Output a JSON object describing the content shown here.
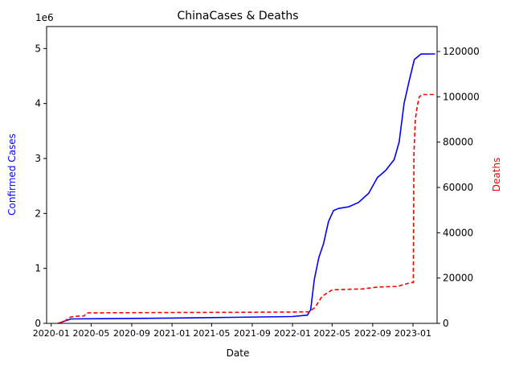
{
  "chart_data": {
    "type": "line",
    "title": "ChinaCases & Deaths",
    "xlabel": "Date",
    "ylabel_left": "Confirmed Cases",
    "ylabel_right": "Deaths",
    "left_axis_multiplier_label": "1e6",
    "colors": {
      "cases": "#0000ff",
      "deaths": "#ff0000",
      "axes": "#000000"
    },
    "grid": false,
    "x_ticks": [
      "2020-01",
      "2020-05",
      "2020-09",
      "2021-01",
      "2021-05",
      "2021-09",
      "2022-01",
      "2022-05",
      "2022-09",
      "2023-01"
    ],
    "xlim": [
      "2019-12-18",
      "2023-03-15"
    ],
    "y_left_ticks": [
      0,
      1,
      2,
      3,
      4,
      5
    ],
    "y_left_ticks_display": [
      "0",
      "1",
      "2",
      "3",
      "4",
      "5"
    ],
    "y_left_scale": 1000000,
    "ylim_left": [
      0,
      5400000
    ],
    "y_right_ticks": [
      0,
      20000,
      40000,
      60000,
      80000,
      100000,
      120000
    ],
    "y_right_ticks_display": [
      "0",
      "20000",
      "40000",
      "60000",
      "80000",
      "100000",
      "120000"
    ],
    "ylim_right": [
      0,
      131000
    ],
    "series": [
      {
        "axis": "left",
        "style": "solid",
        "points": [
          [
            "2020-01-22",
            548
          ],
          [
            "2020-02-10",
            40000
          ],
          [
            "2020-03-01",
            80000
          ],
          [
            "2020-06-01",
            85000
          ],
          [
            "2021-01-01",
            97000
          ],
          [
            "2021-07-01",
            110000
          ],
          [
            "2022-01-01",
            125000
          ],
          [
            "2022-02-15",
            150000
          ],
          [
            "2022-02-25",
            250000
          ],
          [
            "2022-03-08",
            800000
          ],
          [
            "2022-03-22",
            1200000
          ],
          [
            "2022-04-05",
            1450000
          ],
          [
            "2022-04-20",
            1850000
          ],
          [
            "2022-05-05",
            2050000
          ],
          [
            "2022-05-20",
            2090000
          ],
          [
            "2022-06-20",
            2120000
          ],
          [
            "2022-07-20",
            2200000
          ],
          [
            "2022-08-20",
            2370000
          ],
          [
            "2022-09-15",
            2650000
          ],
          [
            "2022-10-10",
            2780000
          ],
          [
            "2022-11-05",
            2980000
          ],
          [
            "2022-11-20",
            3300000
          ],
          [
            "2022-12-05",
            4000000
          ],
          [
            "2022-12-20",
            4400000
          ],
          [
            "2023-01-05",
            4800000
          ],
          [
            "2023-01-25",
            4900000
          ],
          [
            "2023-03-09",
            4903000
          ]
        ]
      },
      {
        "axis": "right",
        "style": "dashed",
        "points": [
          [
            "2020-01-22",
            17
          ],
          [
            "2020-02-10",
            900
          ],
          [
            "2020-02-25",
            2600
          ],
          [
            "2020-03-10",
            3100
          ],
          [
            "2020-04-10",
            3300
          ],
          [
            "2020-04-17",
            4600
          ],
          [
            "2021-01-01",
            4800
          ],
          [
            "2021-07-01",
            4850
          ],
          [
            "2022-01-01",
            5000
          ],
          [
            "2022-02-20",
            5100
          ],
          [
            "2022-03-10",
            7000
          ],
          [
            "2022-04-01",
            12000
          ],
          [
            "2022-05-01",
            14800
          ],
          [
            "2022-06-15",
            15000
          ],
          [
            "2022-08-01",
            15200
          ],
          [
            "2022-09-15",
            16000
          ],
          [
            "2022-10-15",
            16200
          ],
          [
            "2022-11-15",
            16300
          ],
          [
            "2022-12-25",
            18000
          ],
          [
            "2023-01-02",
            18000
          ],
          [
            "2023-01-04",
            75000
          ],
          [
            "2023-01-08",
            90000
          ],
          [
            "2023-01-14",
            96000
          ],
          [
            "2023-01-20",
            100000
          ],
          [
            "2023-01-30",
            101000
          ],
          [
            "2023-03-09",
            101000
          ]
        ]
      }
    ]
  }
}
